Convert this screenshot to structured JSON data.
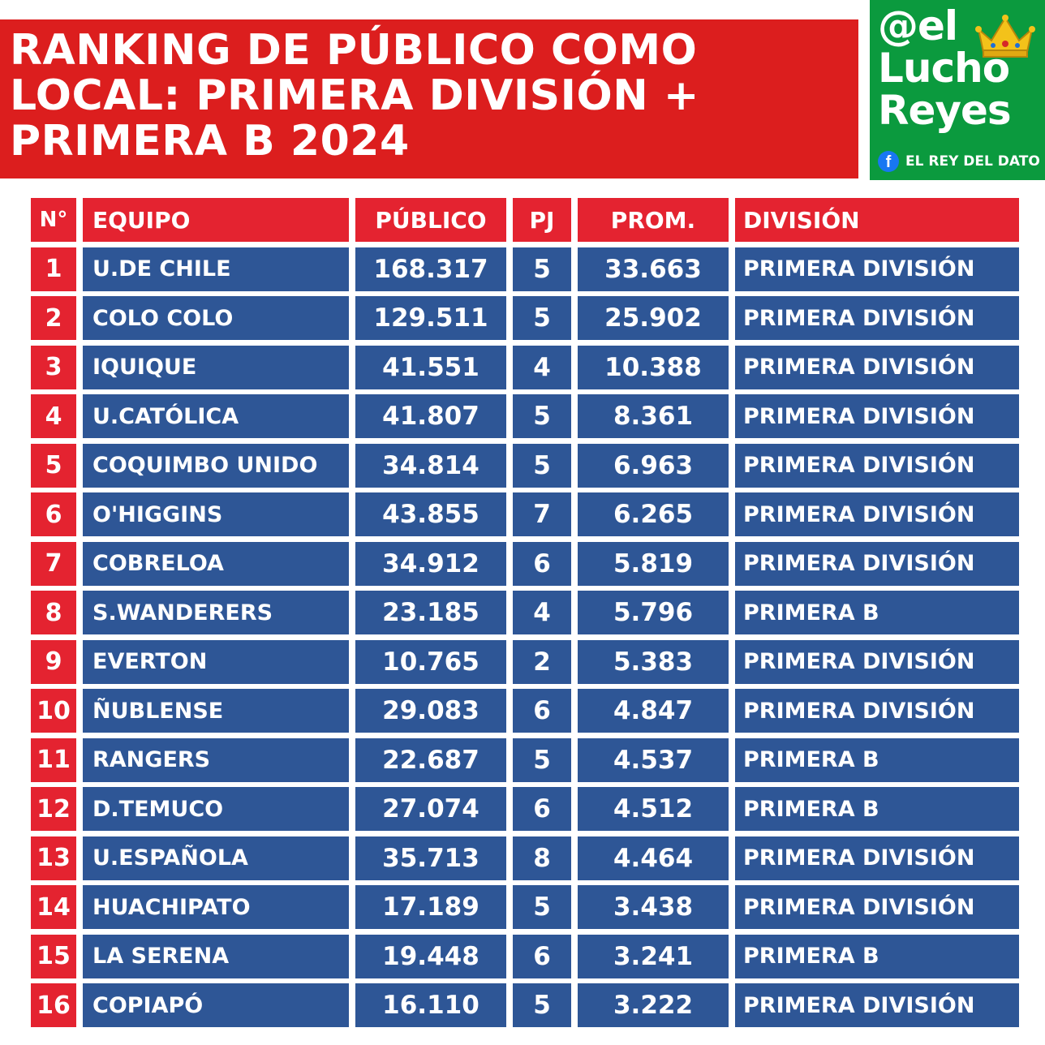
{
  "title": {
    "lines": [
      "RANKING DE PÚBLICO COMO",
      "LOCAL: PRIMERA DIVISIÓN +",
      "PRIMERA B 2024"
    ]
  },
  "brand": {
    "line1": "@el",
    "line2": "Lucho",
    "line3": "Reyes",
    "tagline": "EL REY DEL DATO",
    "fb_glyph": "f",
    "crown_icon": "crown-icon",
    "facebook_icon": "facebook-icon",
    "colors": {
      "brand_bg": "#0b9a3e",
      "title_bg": "#dc1e1e",
      "row_bg": "#2e5696",
      "header_bg": "#e42330"
    }
  },
  "table": {
    "headers": {
      "no": "N°",
      "team": "EQUIPO",
      "public": "PÚBLICO",
      "pj": "PJ",
      "prom": "PROM.",
      "division": "DIVISIÓN"
    },
    "rows": [
      {
        "no": "1",
        "team": "U.DE CHILE",
        "public": "168.317",
        "pj": "5",
        "prom": "33.663",
        "division": "PRIMERA DIVISIÓN"
      },
      {
        "no": "2",
        "team": "COLO COLO",
        "public": "129.511",
        "pj": "5",
        "prom": "25.902",
        "division": "PRIMERA DIVISIÓN"
      },
      {
        "no": "3",
        "team": "IQUIQUE",
        "public": "41.551",
        "pj": "4",
        "prom": "10.388",
        "division": "PRIMERA DIVISIÓN"
      },
      {
        "no": "4",
        "team": "U.CATÓLICA",
        "public": "41.807",
        "pj": "5",
        "prom": "8.361",
        "division": "PRIMERA DIVISIÓN"
      },
      {
        "no": "5",
        "team": "COQUIMBO UNIDO",
        "public": "34.814",
        "pj": "5",
        "prom": "6.963",
        "division": "PRIMERA DIVISIÓN"
      },
      {
        "no": "6",
        "team": "O'HIGGINS",
        "public": "43.855",
        "pj": "7",
        "prom": "6.265",
        "division": "PRIMERA DIVISIÓN"
      },
      {
        "no": "7",
        "team": "COBRELOA",
        "public": "34.912",
        "pj": "6",
        "prom": "5.819",
        "division": "PRIMERA DIVISIÓN"
      },
      {
        "no": "8",
        "team": "S.WANDERERS",
        "public": "23.185",
        "pj": "4",
        "prom": "5.796",
        "division": "PRIMERA B"
      },
      {
        "no": "9",
        "team": "EVERTON",
        "public": "10.765",
        "pj": "2",
        "prom": "5.383",
        "division": "PRIMERA DIVISIÓN"
      },
      {
        "no": "10",
        "team": "ÑUBLENSE",
        "public": "29.083",
        "pj": "6",
        "prom": "4.847",
        "division": "PRIMERA DIVISIÓN"
      },
      {
        "no": "11",
        "team": "RANGERS",
        "public": "22.687",
        "pj": "5",
        "prom": "4.537",
        "division": "PRIMERA B"
      },
      {
        "no": "12",
        "team": "D.TEMUCO",
        "public": "27.074",
        "pj": "6",
        "prom": "4.512",
        "division": "PRIMERA B"
      },
      {
        "no": "13",
        "team": "U.ESPAÑOLA",
        "public": "35.713",
        "pj": "8",
        "prom": "4.464",
        "division": "PRIMERA DIVISIÓN"
      },
      {
        "no": "14",
        "team": "HUACHIPATO",
        "public": "17.189",
        "pj": "5",
        "prom": "3.438",
        "division": "PRIMERA DIVISIÓN"
      },
      {
        "no": "15",
        "team": "LA SERENA",
        "public": "19.448",
        "pj": "6",
        "prom": "3.241",
        "division": "PRIMERA B"
      },
      {
        "no": "16",
        "team": "COPIAPÓ",
        "public": "16.110",
        "pj": "5",
        "prom": "3.222",
        "division": "PRIMERA DIVISIÓN"
      }
    ]
  }
}
